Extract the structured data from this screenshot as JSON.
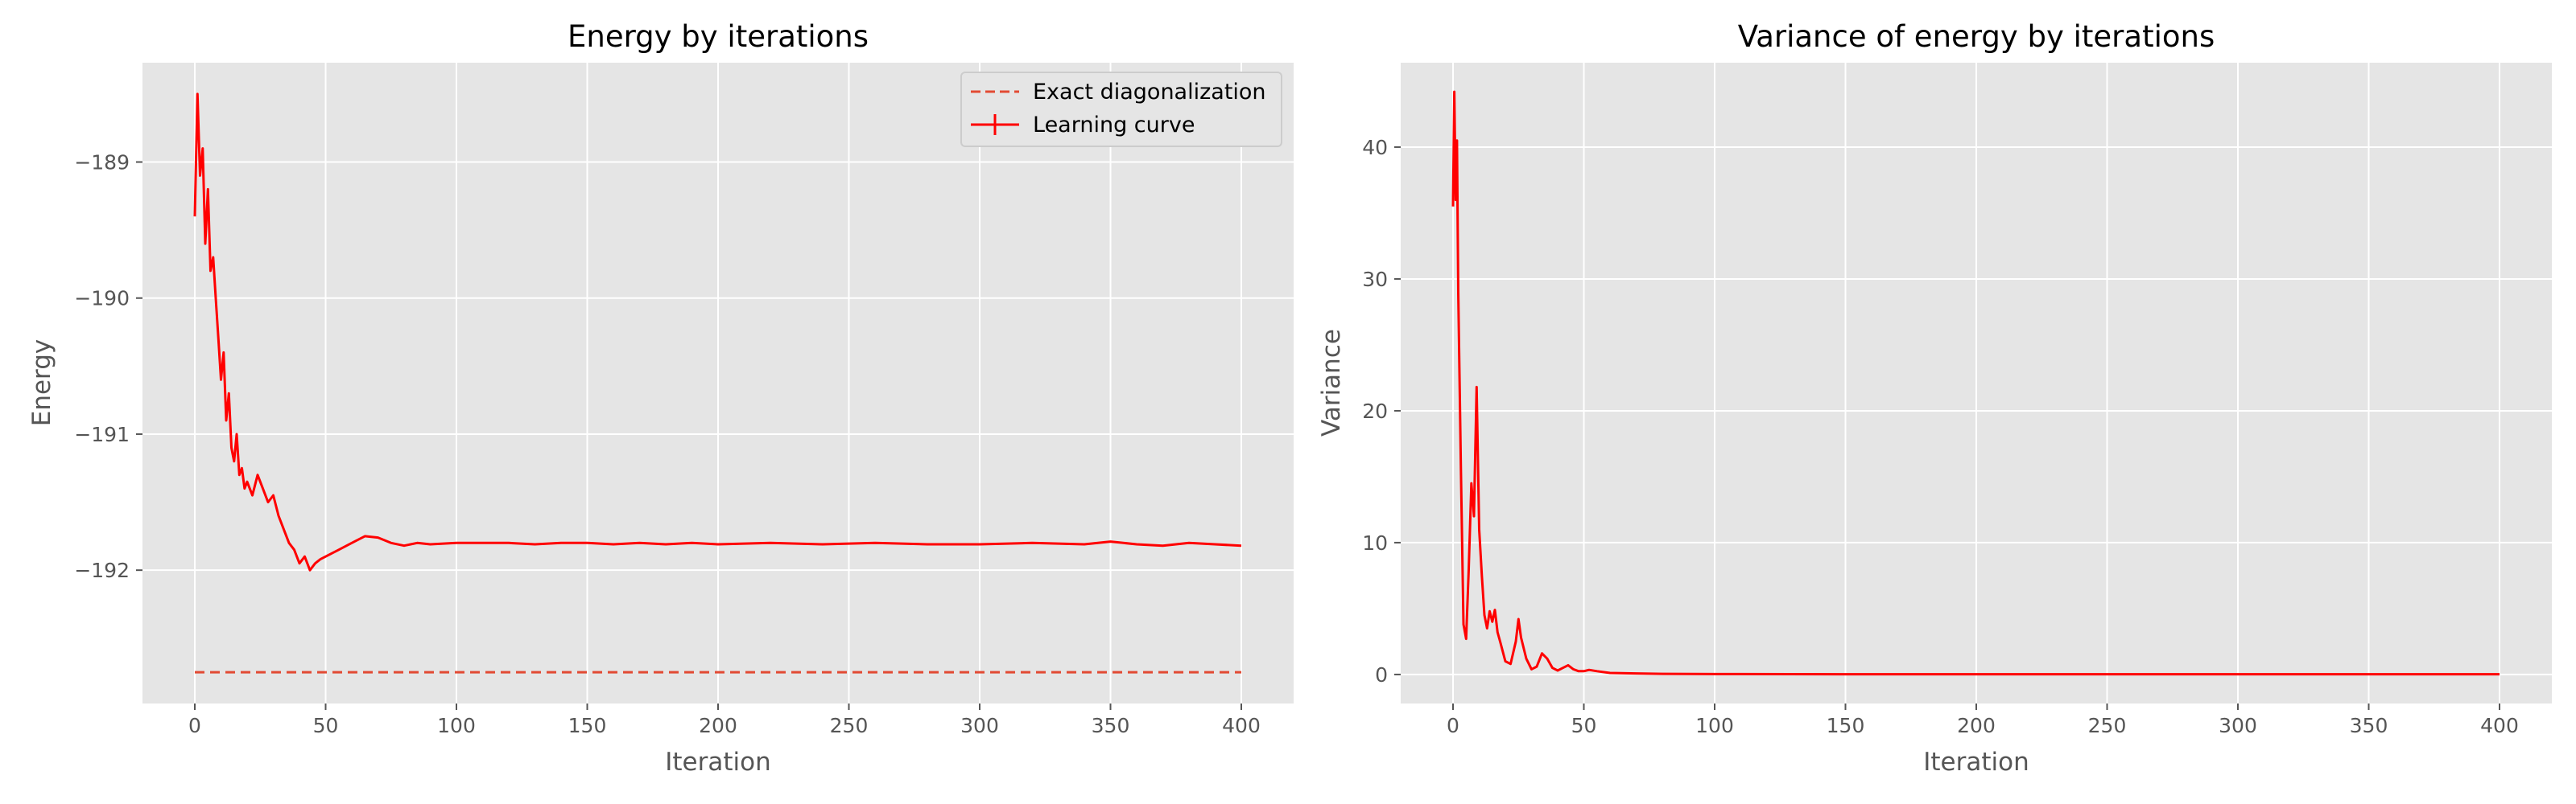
{
  "chart_data": [
    {
      "type": "line",
      "title": "Energy by iterations",
      "xlabel": "Iteration",
      "ylabel": "Energy",
      "xlim": [
        -20,
        420
      ],
      "ylim": [
        -192.98,
        -188.27
      ],
      "xticks": [
        0,
        50,
        100,
        150,
        200,
        250,
        300,
        350,
        400
      ],
      "xtick_labels": [
        "0",
        "50",
        "100",
        "150",
        "200",
        "250",
        "300",
        "350",
        "400"
      ],
      "yticks": [
        -192,
        -191,
        -190,
        -189
      ],
      "ytick_labels": [
        "−192",
        "−191",
        "−190",
        "−189"
      ],
      "grid": true,
      "legend_position": "top-right",
      "series": [
        {
          "name": "Exact diagonalization",
          "style": "dashed",
          "color": "#e24a33",
          "x": [
            0,
            400
          ],
          "y": [
            -192.75,
            -192.75
          ]
        },
        {
          "name": "Learning curve",
          "style": "solid",
          "color": "#ff0000",
          "x": [
            0,
            1,
            2,
            3,
            4,
            5,
            6,
            7,
            8,
            9,
            10,
            11,
            12,
            13,
            14,
            15,
            16,
            17,
            18,
            19,
            20,
            22,
            24,
            26,
            28,
            30,
            32,
            34,
            36,
            38,
            40,
            42,
            44,
            46,
            48,
            50,
            55,
            60,
            65,
            70,
            75,
            80,
            85,
            90,
            100,
            110,
            120,
            130,
            140,
            150,
            160,
            170,
            180,
            190,
            200,
            220,
            240,
            260,
            280,
            300,
            320,
            340,
            350,
            360,
            370,
            380,
            390,
            400
          ],
          "y": [
            -189.4,
            -188.5,
            -189.1,
            -188.9,
            -189.6,
            -189.2,
            -189.8,
            -189.7,
            -190.0,
            -190.3,
            -190.6,
            -190.4,
            -190.9,
            -190.7,
            -191.1,
            -191.2,
            -191.0,
            -191.3,
            -191.25,
            -191.4,
            -191.35,
            -191.45,
            -191.3,
            -191.4,
            -191.5,
            -191.45,
            -191.6,
            -191.7,
            -191.8,
            -191.85,
            -191.95,
            -191.9,
            -192.0,
            -191.95,
            -191.92,
            -191.9,
            -191.85,
            -191.8,
            -191.75,
            -191.76,
            -191.8,
            -191.82,
            -191.8,
            -191.81,
            -191.8,
            -191.8,
            -191.8,
            -191.81,
            -191.8,
            -191.8,
            -191.81,
            -191.8,
            -191.81,
            -191.8,
            -191.81,
            -191.8,
            -191.81,
            -191.8,
            -191.81,
            -191.81,
            -191.8,
            -191.81,
            -191.79,
            -191.81,
            -191.82,
            -191.8,
            -191.81,
            -191.82
          ]
        }
      ]
    },
    {
      "type": "line",
      "title": "Variance of energy by iterations",
      "xlabel": "Iteration",
      "ylabel": "Variance",
      "xlim": [
        -20,
        420
      ],
      "ylim": [
        -2.2,
        46.4
      ],
      "xticks": [
        0,
        50,
        100,
        150,
        200,
        250,
        300,
        350,
        400
      ],
      "xtick_labels": [
        "0",
        "50",
        "100",
        "150",
        "200",
        "250",
        "300",
        "350",
        "400"
      ],
      "yticks": [
        0,
        10,
        20,
        30,
        40
      ],
      "ytick_labels": [
        "0",
        "10",
        "20",
        "30",
        "40"
      ],
      "grid": true,
      "series": [
        {
          "style": "solid",
          "color": "#ff0000",
          "x": [
            0,
            0.5,
            1,
            1.5,
            2,
            3,
            4,
            5,
            6,
            7,
            8,
            9,
            10,
            11,
            12,
            13,
            14,
            15,
            16,
            17,
            18,
            20,
            22,
            24,
            25,
            26,
            28,
            30,
            32,
            34,
            36,
            38,
            40,
            42,
            44,
            46,
            48,
            50,
            52,
            55,
            60,
            70,
            80,
            100,
            150,
            200,
            300,
            400
          ],
          "y": [
            35.5,
            44.2,
            36.0,
            40.5,
            29.0,
            15.5,
            3.8,
            2.7,
            8.0,
            14.5,
            12.0,
            21.8,
            11.0,
            7.5,
            4.5,
            3.5,
            4.8,
            4.0,
            4.9,
            3.2,
            2.5,
            1.0,
            0.8,
            2.5,
            4.2,
            2.8,
            1.2,
            0.4,
            0.6,
            1.6,
            1.2,
            0.5,
            0.3,
            0.5,
            0.7,
            0.4,
            0.25,
            0.25,
            0.35,
            0.25,
            0.12,
            0.08,
            0.05,
            0.03,
            0.02,
            0.02,
            0.02,
            0.02
          ]
        }
      ]
    }
  ]
}
